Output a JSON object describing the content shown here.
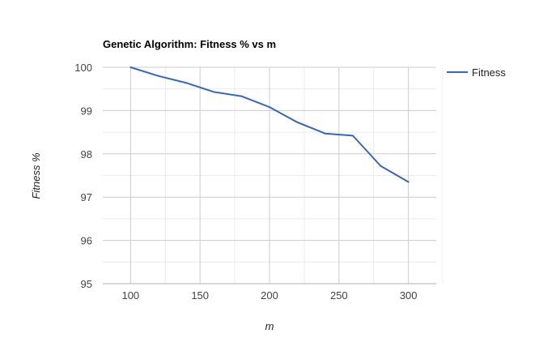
{
  "chart_data": {
    "type": "line",
    "title": "Genetic Algorithm: Fitness % vs m",
    "xlabel": "m",
    "ylabel": "Fitness %",
    "xlim": [
      80,
      320
    ],
    "ylim": [
      95,
      100
    ],
    "x_ticks": [
      100,
      150,
      200,
      250,
      300
    ],
    "y_ticks": [
      95,
      96,
      97,
      98,
      99,
      100
    ],
    "grid": true,
    "legend_position": "right",
    "series": [
      {
        "name": "Fitness",
        "color": "#3366cc",
        "x": [
          100,
          120,
          140,
          160,
          180,
          200,
          220,
          240,
          260,
          280,
          300
        ],
        "y": [
          100,
          99.8,
          99.64,
          99.43,
          99.33,
          99.08,
          98.73,
          98.47,
          98.42,
          97.72,
          97.35
        ]
      }
    ]
  }
}
